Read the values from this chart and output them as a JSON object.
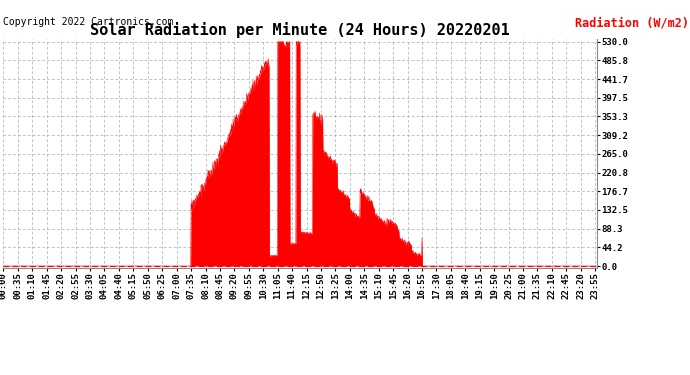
{
  "title": "Solar Radiation per Minute (24 Hours) 20220201",
  "ylabel": "Radiation (W/m2)",
  "copyright_text": "Copyright 2022 Cartronics.com",
  "bg_color": "#ffffff",
  "fill_color": "#ff0000",
  "line_color": "#ff0000",
  "grid_color": "#aaaaaa",
  "yticks": [
    0.0,
    44.2,
    88.3,
    132.5,
    176.7,
    220.8,
    265.0,
    309.2,
    353.3,
    397.5,
    441.7,
    485.8,
    530.0
  ],
  "ylim_max": 530.0,
  "title_fontsize": 11,
  "tick_fontsize": 6.5,
  "ylabel_fontsize": 8.5,
  "copyright_fontsize": 7,
  "n_minutes": 1440,
  "rise_minute": 455,
  "set_minute": 1015,
  "peak_minute": 710,
  "max_val": 530.0
}
